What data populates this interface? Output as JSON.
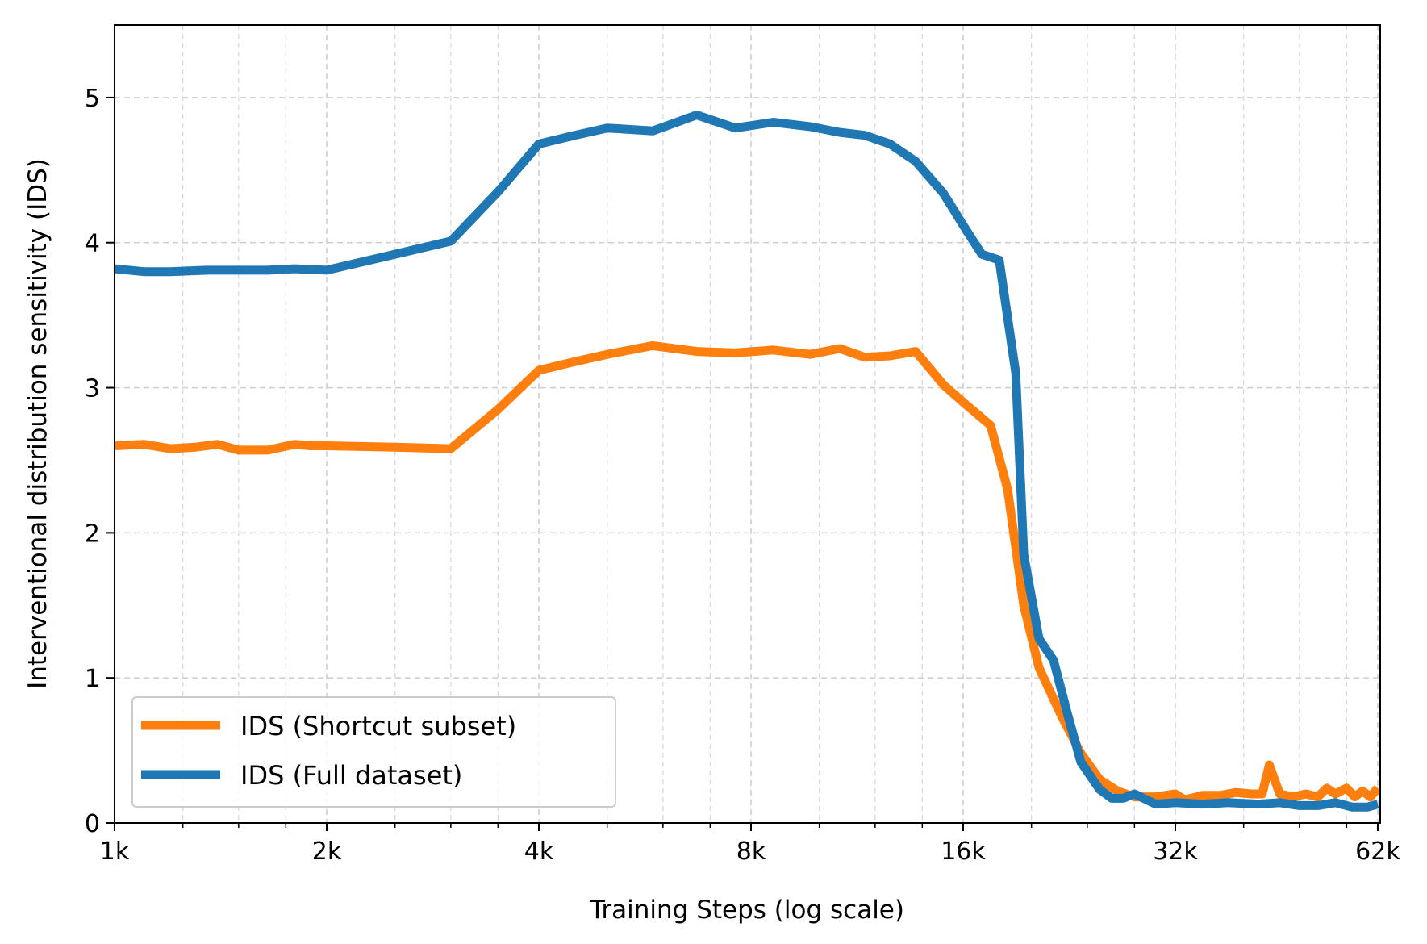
{
  "chart_data": {
    "type": "line",
    "xlabel": "Training Steps (log scale)",
    "ylabel": "Interventional distribution sensitivity (IDS)",
    "xscale": "log",
    "xlim": [
      1000,
      62500
    ],
    "ylim": [
      0,
      5.5
    ],
    "grid": true,
    "legend_position": "lower-left",
    "x_ticks": [
      {
        "value": 1000,
        "label": "1k"
      },
      {
        "value": 2000,
        "label": "2k"
      },
      {
        "value": 4000,
        "label": "4k"
      },
      {
        "value": 8000,
        "label": "8k"
      },
      {
        "value": 16000,
        "label": "16k"
      },
      {
        "value": 32000,
        "label": "32k"
      },
      {
        "value": 62000,
        "label": "62k"
      }
    ],
    "y_ticks": [
      {
        "value": 0,
        "label": "0"
      },
      {
        "value": 1,
        "label": "1"
      },
      {
        "value": 2,
        "label": "2"
      },
      {
        "value": 3,
        "label": "3"
      },
      {
        "value": 4,
        "label": "4"
      },
      {
        "value": 5,
        "label": "5"
      }
    ],
    "series": [
      {
        "name": "IDS (Shortcut subset)",
        "color": "#ff7f0e",
        "points": [
          [
            1000,
            2.6
          ],
          [
            1100,
            2.61
          ],
          [
            1200,
            2.58
          ],
          [
            1300,
            2.59
          ],
          [
            1400,
            2.61
          ],
          [
            1500,
            2.57
          ],
          [
            1650,
            2.57
          ],
          [
            1800,
            2.61
          ],
          [
            1900,
            2.6
          ],
          [
            2000,
            2.6
          ],
          [
            2500,
            2.59
          ],
          [
            3000,
            2.58
          ],
          [
            3500,
            2.85
          ],
          [
            4000,
            3.12
          ],
          [
            4500,
            3.18
          ],
          [
            5000,
            3.23
          ],
          [
            5800,
            3.29
          ],
          [
            6700,
            3.25
          ],
          [
            7600,
            3.24
          ],
          [
            8600,
            3.26
          ],
          [
            9700,
            3.23
          ],
          [
            10700,
            3.27
          ],
          [
            11600,
            3.21
          ],
          [
            12600,
            3.22
          ],
          [
            13700,
            3.25
          ],
          [
            15000,
            3.02
          ],
          [
            16000,
            2.9
          ],
          [
            17500,
            2.74
          ],
          [
            18500,
            2.3
          ],
          [
            19500,
            1.5
          ],
          [
            20500,
            1.07
          ],
          [
            22000,
            0.75
          ],
          [
            23500,
            0.48
          ],
          [
            25000,
            0.3
          ],
          [
            26500,
            0.22
          ],
          [
            28000,
            0.18
          ],
          [
            30000,
            0.18
          ],
          [
            32000,
            0.2
          ],
          [
            33000,
            0.16
          ],
          [
            35000,
            0.19
          ],
          [
            37000,
            0.19
          ],
          [
            39000,
            0.21
          ],
          [
            41000,
            0.2
          ],
          [
            42500,
            0.2
          ],
          [
            43500,
            0.4
          ],
          [
            45000,
            0.2
          ],
          [
            47000,
            0.18
          ],
          [
            49000,
            0.2
          ],
          [
            51000,
            0.18
          ],
          [
            52500,
            0.24
          ],
          [
            54000,
            0.2
          ],
          [
            56000,
            0.24
          ],
          [
            57500,
            0.18
          ],
          [
            59000,
            0.22
          ],
          [
            60500,
            0.18
          ],
          [
            62000,
            0.24
          ]
        ]
      },
      {
        "name": "IDS (Full dataset)",
        "color": "#1f77b4",
        "points": [
          [
            1000,
            3.82
          ],
          [
            1100,
            3.8
          ],
          [
            1200,
            3.8
          ],
          [
            1350,
            3.81
          ],
          [
            1500,
            3.81
          ],
          [
            1650,
            3.81
          ],
          [
            1800,
            3.82
          ],
          [
            2000,
            3.81
          ],
          [
            2500,
            3.92
          ],
          [
            3000,
            4.01
          ],
          [
            3500,
            4.35
          ],
          [
            4000,
            4.68
          ],
          [
            4500,
            4.74
          ],
          [
            5000,
            4.79
          ],
          [
            5800,
            4.77
          ],
          [
            6700,
            4.88
          ],
          [
            7600,
            4.79
          ],
          [
            8600,
            4.83
          ],
          [
            9700,
            4.8
          ],
          [
            10700,
            4.76
          ],
          [
            11600,
            4.74
          ],
          [
            12600,
            4.68
          ],
          [
            13700,
            4.56
          ],
          [
            15000,
            4.34
          ],
          [
            16000,
            4.12
          ],
          [
            17000,
            3.92
          ],
          [
            18000,
            3.88
          ],
          [
            19000,
            3.1
          ],
          [
            19500,
            1.85
          ],
          [
            20500,
            1.27
          ],
          [
            21500,
            1.12
          ],
          [
            22500,
            0.75
          ],
          [
            23500,
            0.42
          ],
          [
            25000,
            0.23
          ],
          [
            26000,
            0.17
          ],
          [
            27000,
            0.17
          ],
          [
            28000,
            0.2
          ],
          [
            30000,
            0.13
          ],
          [
            32000,
            0.14
          ],
          [
            35000,
            0.13
          ],
          [
            38000,
            0.14
          ],
          [
            42000,
            0.13
          ],
          [
            45000,
            0.14
          ],
          [
            48000,
            0.12
          ],
          [
            51000,
            0.12
          ],
          [
            54000,
            0.14
          ],
          [
            57000,
            0.11
          ],
          [
            60000,
            0.11
          ],
          [
            62000,
            0.13
          ]
        ]
      }
    ]
  }
}
